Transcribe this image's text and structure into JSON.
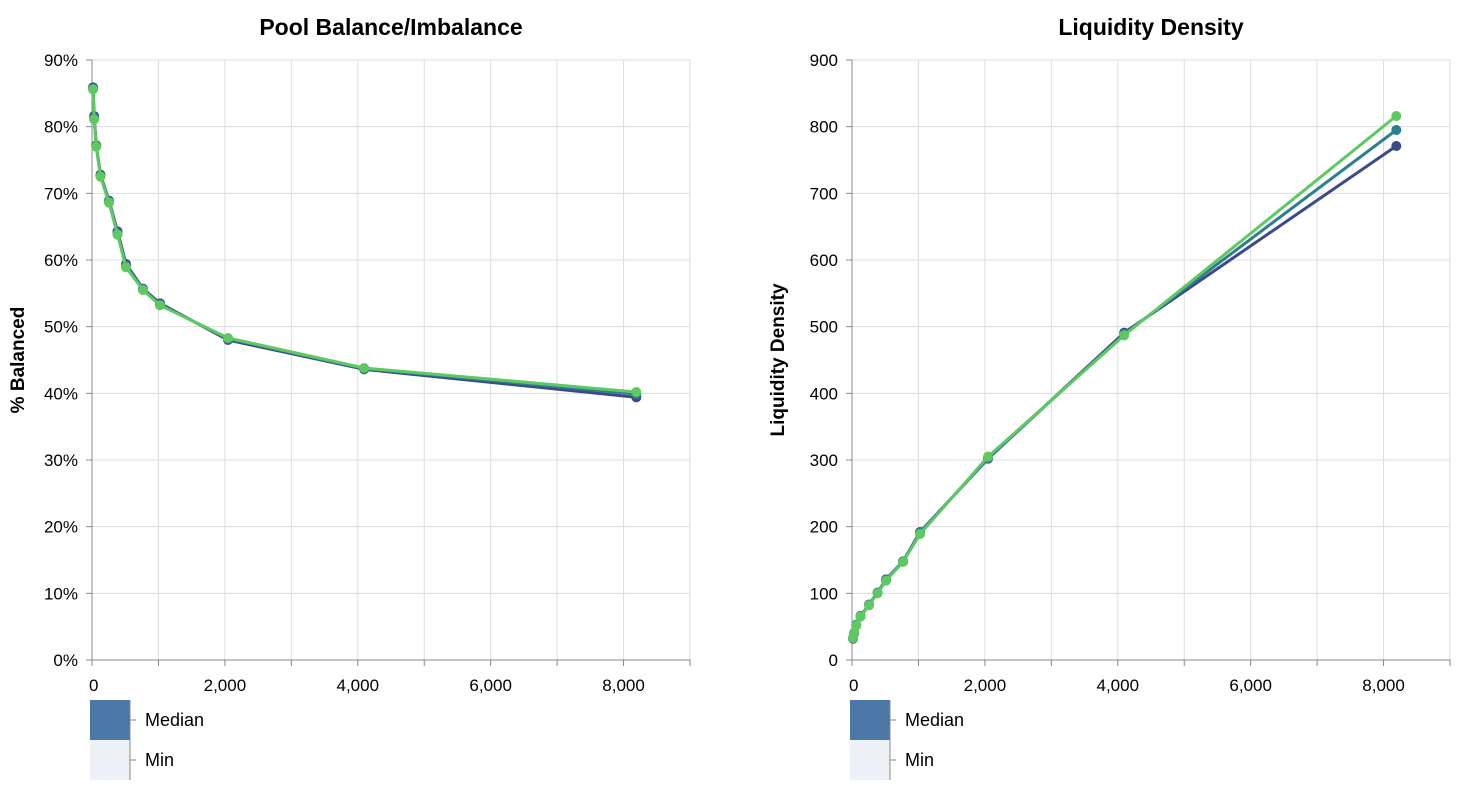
{
  "chart_data": [
    {
      "type": "line",
      "title": "Pool Balance/Imbalance",
      "xlabel": "",
      "ylabel": "% Balanced",
      "xlim": [
        0,
        9000
      ],
      "ylim": [
        0,
        90
      ],
      "x_ticks": [
        "0",
        "2,000",
        "4,000",
        "6,000",
        "8,000"
      ],
      "y_ticks": [
        "0%",
        "10%",
        "20%",
        "30%",
        "40%",
        "50%",
        "60%",
        "70%",
        "80%",
        "90%"
      ],
      "grid": true,
      "legend": {
        "placement": "bottom-left",
        "items": [
          "Median",
          "Min"
        ]
      },
      "colors": [
        "#3d4a89",
        "#2e7f8e",
        "#5ec962"
      ],
      "x": [
        16,
        32,
        64,
        128,
        256,
        384,
        512,
        768,
        1024,
        2048,
        4096,
        8192
      ],
      "series": [
        {
          "values": [
            85.9,
            81.6,
            77.2,
            72.8,
            68.9,
            64.3,
            59.4,
            55.7,
            53.5,
            48.0,
            43.6,
            39.4
          ]
        },
        {
          "values": [
            85.7,
            81.3,
            77.1,
            72.6,
            68.8,
            64.0,
            59.1,
            55.6,
            53.3,
            48.2,
            43.7,
            39.9
          ]
        },
        {
          "values": [
            85.6,
            81.1,
            77.0,
            72.5,
            68.6,
            63.8,
            58.9,
            55.5,
            53.2,
            48.3,
            43.8,
            40.2
          ]
        }
      ]
    },
    {
      "type": "line",
      "title": "Liquidity Density",
      "xlabel": "",
      "ylabel": "Liquidity Density",
      "xlim": [
        0,
        9000
      ],
      "ylim": [
        0,
        900
      ],
      "x_ticks": [
        "0",
        "2,000",
        "4,000",
        "6,000",
        "8,000"
      ],
      "y_ticks": [
        "0",
        "100",
        "200",
        "300",
        "400",
        "500",
        "600",
        "700",
        "800",
        "900"
      ],
      "grid": true,
      "legend": {
        "placement": "bottom-left",
        "items": [
          "Median",
          "Min"
        ]
      },
      "colors": [
        "#3d4a89",
        "#2e7f8e",
        "#5ec962"
      ],
      "x": [
        16,
        32,
        64,
        128,
        256,
        384,
        512,
        768,
        1024,
        2048,
        4096,
        8192
      ],
      "series": [
        {
          "values": [
            32,
            40,
            52,
            66,
            83,
            101,
            121,
            148,
            192,
            302,
            491,
            771
          ]
        },
        {
          "values": [
            33,
            41,
            53,
            66,
            83,
            101,
            120,
            148,
            191,
            303,
            489,
            795
          ]
        },
        {
          "values": [
            33,
            41,
            52,
            65,
            82,
            100,
            119,
            147,
            189,
            305,
            487,
            816
          ]
        }
      ]
    }
  ],
  "legend_swatch_colors": {
    "Median": "#4c78a8",
    "Min": "#eef0f8"
  }
}
